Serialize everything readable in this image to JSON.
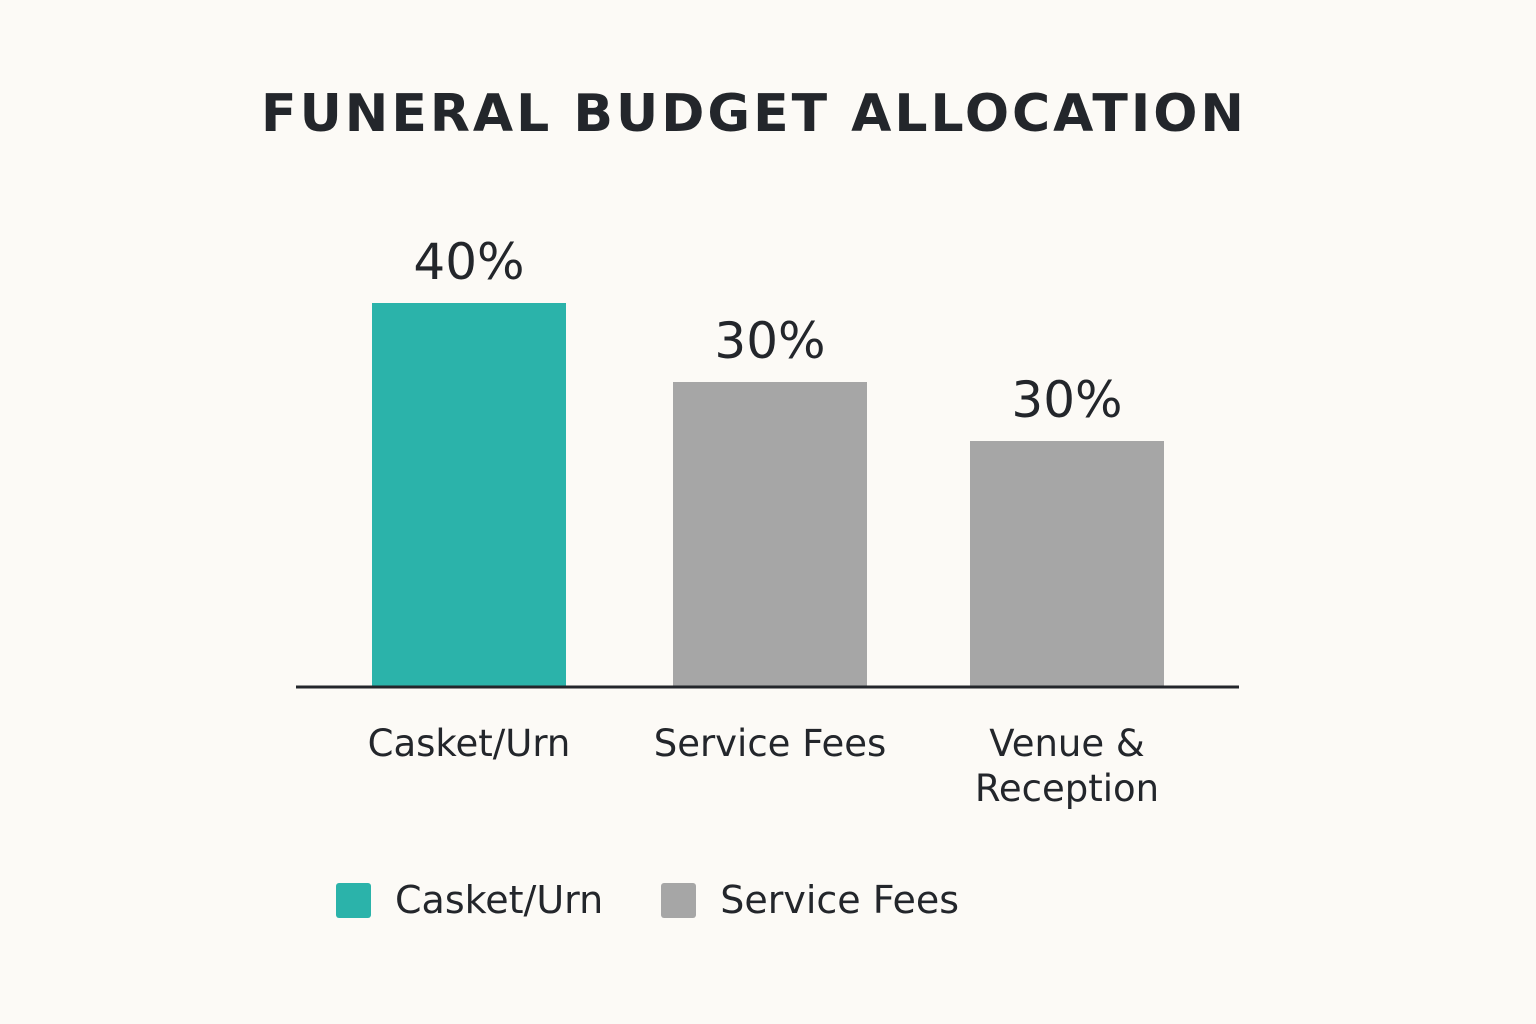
{
  "chart_data": {
    "type": "bar",
    "title": "FUNERAL BUDGET ALLOCATION",
    "categories": [
      "Casket/Urn",
      "Service Fees",
      "Venue & Reception"
    ],
    "values": [
      40,
      30,
      30
    ],
    "value_labels": [
      "40%",
      "30%",
      "30%"
    ],
    "unit": "%",
    "bar_colors": [
      "#2bb3aa",
      "#a6a6a6",
      "#a6a6a6"
    ],
    "legend": [
      {
        "label": "Casket/Urn",
        "color": "#2bb3aa"
      },
      {
        "label": "Service Fees",
        "color": "#a6a6a6"
      }
    ],
    "legend_position": "bottom-left",
    "grid": false,
    "xlabel": "",
    "ylabel": ""
  }
}
